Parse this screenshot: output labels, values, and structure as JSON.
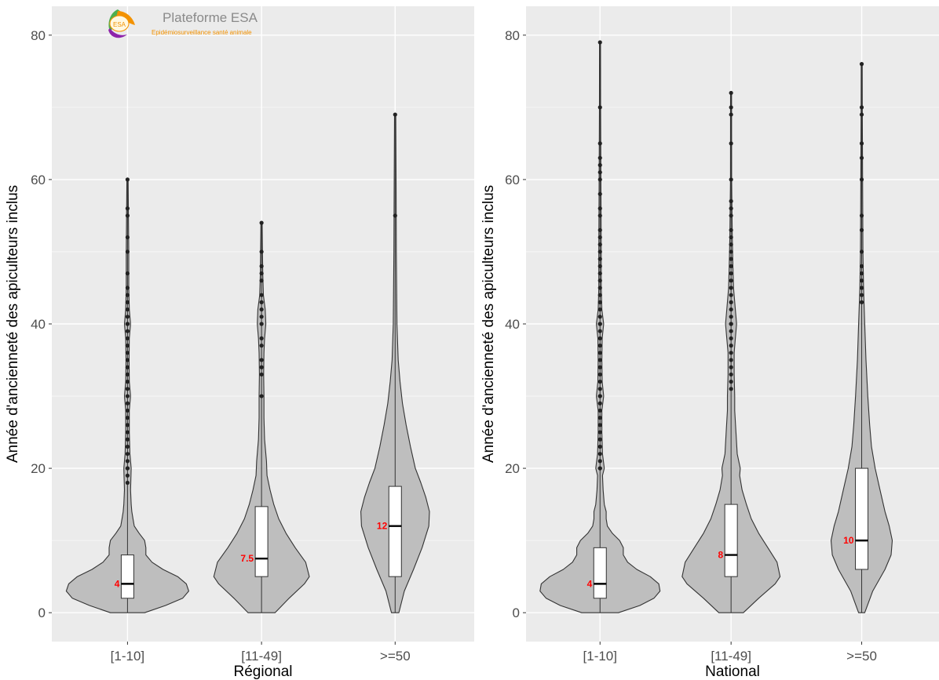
{
  "logo": {
    "mark_text": "ESA",
    "title": "Plateforme ESA",
    "subtitle": "Epidémiosurveillance santé animale",
    "colors": [
      "#4caf50",
      "#f39200",
      "#8e24aa"
    ]
  },
  "style": {
    "panel_background": "#ebebeb",
    "grid_color": "#ffffff",
    "violin_fill": "#bebebe",
    "violin_stroke": "#333333",
    "box_fill": "#ffffff",
    "point_color": "#222222",
    "median_label_color": "#ff0000"
  },
  "chart_data": [
    {
      "type": "violin",
      "xlabel": "Régional",
      "ylabel": "Année d'ancienneté des apiculteurs inclus",
      "categories": [
        "[1-10]",
        "[11-49]",
        ">=50"
      ],
      "ylim": [
        -4,
        84
      ],
      "yticks": [
        0,
        20,
        40,
        60,
        80
      ],
      "grid": true,
      "series": [
        {
          "category": "[1-10]",
          "box": {
            "q1": 2,
            "median": 4,
            "q3": 8,
            "whisker_low": 0,
            "whisker_high": 17
          },
          "median_label": "4",
          "density": [
            [
              0,
              0.28
            ],
            [
              1,
              0.62
            ],
            [
              2,
              0.9
            ],
            [
              3,
              1.0
            ],
            [
              4,
              0.96
            ],
            [
              5,
              0.82
            ],
            [
              6,
              0.58
            ],
            [
              7,
              0.4
            ],
            [
              8,
              0.3
            ],
            [
              9,
              0.3
            ],
            [
              10,
              0.28
            ],
            [
              11,
              0.19
            ],
            [
              12,
              0.11
            ],
            [
              13,
              0.09
            ],
            [
              14,
              0.07
            ],
            [
              15,
              0.06
            ],
            [
              17,
              0.05
            ],
            [
              20,
              0.06
            ],
            [
              22,
              0.04
            ],
            [
              25,
              0.03
            ],
            [
              28,
              0.03
            ],
            [
              30,
              0.05
            ],
            [
              32,
              0.03
            ],
            [
              35,
              0.025
            ],
            [
              38,
              0.03
            ],
            [
              40,
              0.05
            ],
            [
              42,
              0.03
            ],
            [
              45,
              0.02
            ],
            [
              50,
              0.02
            ],
            [
              55,
              0.015
            ],
            [
              60,
              0.01
            ]
          ],
          "outliers": [
            18,
            19,
            20,
            20,
            21,
            22,
            23,
            24,
            25,
            26,
            27,
            28,
            29,
            30,
            31,
            32,
            33,
            34,
            35,
            36,
            37,
            38,
            39,
            40,
            40,
            41,
            42,
            43,
            44,
            45,
            47,
            50,
            52,
            55,
            56,
            60
          ]
        },
        {
          "category": "[11-49]",
          "box": {
            "q1": 5,
            "median": 7.5,
            "q3": 14.7,
            "whisker_low": 0,
            "whisker_high": 28
          },
          "median_label": "7.5",
          "density": [
            [
              0,
              0.22
            ],
            [
              2,
              0.45
            ],
            [
              4,
              0.7
            ],
            [
              5,
              0.78
            ],
            [
              7,
              0.72
            ],
            [
              9,
              0.55
            ],
            [
              11,
              0.4
            ],
            [
              13,
              0.28
            ],
            [
              15,
              0.2
            ],
            [
              17,
              0.14
            ],
            [
              19,
              0.09
            ],
            [
              21,
              0.08
            ],
            [
              24,
              0.05
            ],
            [
              27,
              0.04
            ],
            [
              30,
              0.04
            ],
            [
              33,
              0.035
            ],
            [
              36,
              0.04
            ],
            [
              38,
              0.05
            ],
            [
              40,
              0.07
            ],
            [
              42,
              0.06
            ],
            [
              44,
              0.03
            ],
            [
              47,
              0.02
            ],
            [
              50,
              0.015
            ],
            [
              54,
              0.01
            ]
          ],
          "outliers": [
            30,
            33,
            34,
            35,
            37,
            38,
            40,
            41,
            42,
            43,
            44,
            46,
            47,
            48,
            50,
            54
          ]
        },
        {
          "category": ">=50",
          "box": {
            "q1": 5,
            "median": 12,
            "q3": 17.5,
            "whisker_low": 0,
            "whisker_high": 35
          },
          "median_label": "12",
          "density": [
            [
              0,
              0.06
            ],
            [
              3,
              0.15
            ],
            [
              6,
              0.3
            ],
            [
              9,
              0.44
            ],
            [
              12,
              0.55
            ],
            [
              14,
              0.56
            ],
            [
              16,
              0.5
            ],
            [
              18,
              0.42
            ],
            [
              20,
              0.33
            ],
            [
              23,
              0.25
            ],
            [
              26,
              0.18
            ],
            [
              29,
              0.12
            ],
            [
              32,
              0.08
            ],
            [
              35,
              0.05
            ],
            [
              40,
              0.03
            ],
            [
              50,
              0.02
            ],
            [
              60,
              0.015
            ],
            [
              69,
              0.01
            ]
          ],
          "outliers": [
            55,
            69
          ]
        }
      ]
    },
    {
      "type": "violin",
      "xlabel": "National",
      "ylabel": "Année d'ancienneté des apiculteurs inclus",
      "categories": [
        "[1-10]",
        "[11-49]",
        ">=50"
      ],
      "ylim": [
        -4,
        84
      ],
      "yticks": [
        0,
        20,
        40,
        60,
        80
      ],
      "grid": true,
      "series": [
        {
          "category": "[1-10]",
          "box": {
            "q1": 2,
            "median": 4,
            "q3": 9,
            "whisker_low": 0,
            "whisker_high": 19
          },
          "median_label": "4",
          "density": [
            [
              0,
              0.3
            ],
            [
              1,
              0.65
            ],
            [
              2,
              0.88
            ],
            [
              3,
              0.98
            ],
            [
              4,
              0.96
            ],
            [
              5,
              0.82
            ],
            [
              6,
              0.6
            ],
            [
              7,
              0.45
            ],
            [
              8,
              0.38
            ],
            [
              9,
              0.38
            ],
            [
              10,
              0.32
            ],
            [
              11,
              0.2
            ],
            [
              12,
              0.12
            ],
            [
              13,
              0.1
            ],
            [
              14,
              0.1
            ],
            [
              15,
              0.07
            ],
            [
              17,
              0.05
            ],
            [
              19,
              0.04
            ],
            [
              20,
              0.07
            ],
            [
              22,
              0.04
            ],
            [
              25,
              0.03
            ],
            [
              28,
              0.03
            ],
            [
              30,
              0.06
            ],
            [
              32,
              0.035
            ],
            [
              35,
              0.03
            ],
            [
              38,
              0.035
            ],
            [
              40,
              0.06
            ],
            [
              42,
              0.03
            ],
            [
              45,
              0.02
            ],
            [
              50,
              0.02
            ],
            [
              60,
              0.015
            ],
            [
              70,
              0.01
            ],
            [
              79,
              0.008
            ]
          ],
          "outliers": [
            20,
            20,
            21,
            22,
            23,
            24,
            25,
            26,
            27,
            28,
            29,
            30,
            30,
            31,
            32,
            33,
            34,
            35,
            36,
            37,
            38,
            39,
            40,
            40,
            41,
            42,
            43,
            44,
            45,
            46,
            47,
            48,
            49,
            50,
            51,
            52,
            53,
            55,
            56,
            58,
            60,
            61,
            62,
            63,
            65,
            70,
            79
          ]
        },
        {
          "category": "[11-49]",
          "box": {
            "q1": 5,
            "median": 8,
            "q3": 15,
            "whisker_low": 0,
            "whisker_high": 30
          },
          "median_label": "8",
          "density": [
            [
              0,
              0.2
            ],
            [
              2,
              0.45
            ],
            [
              4,
              0.72
            ],
            [
              5,
              0.8
            ],
            [
              7,
              0.75
            ],
            [
              9,
              0.6
            ],
            [
              11,
              0.45
            ],
            [
              13,
              0.33
            ],
            [
              15,
              0.25
            ],
            [
              17,
              0.18
            ],
            [
              19,
              0.14
            ],
            [
              20,
              0.15
            ],
            [
              22,
              0.1
            ],
            [
              25,
              0.08
            ],
            [
              28,
              0.06
            ],
            [
              30,
              0.06
            ],
            [
              33,
              0.05
            ],
            [
              36,
              0.05
            ],
            [
              38,
              0.07
            ],
            [
              40,
              0.09
            ],
            [
              42,
              0.07
            ],
            [
              45,
              0.04
            ],
            [
              48,
              0.03
            ],
            [
              52,
              0.02
            ],
            [
              56,
              0.015
            ],
            [
              60,
              0.01
            ],
            [
              72,
              0.008
            ]
          ],
          "outliers": [
            31,
            32,
            33,
            34,
            35,
            36,
            37,
            38,
            39,
            40,
            40,
            41,
            42,
            43,
            44,
            45,
            46,
            47,
            48,
            49,
            50,
            51,
            52,
            53,
            55,
            56,
            57,
            60,
            65,
            69,
            70,
            72
          ]
        },
        {
          "category": ">=50",
          "box": {
            "q1": 6,
            "median": 10,
            "q3": 20,
            "whisker_low": 0,
            "whisker_high": 41
          },
          "median_label": "10",
          "density": [
            [
              0,
              0.05
            ],
            [
              3,
              0.18
            ],
            [
              6,
              0.38
            ],
            [
              8,
              0.48
            ],
            [
              10,
              0.5
            ],
            [
              12,
              0.45
            ],
            [
              14,
              0.38
            ],
            [
              17,
              0.3
            ],
            [
              20,
              0.22
            ],
            [
              23,
              0.16
            ],
            [
              26,
              0.13
            ],
            [
              30,
              0.1
            ],
            [
              35,
              0.07
            ],
            [
              40,
              0.05
            ],
            [
              45,
              0.03
            ],
            [
              50,
              0.02
            ],
            [
              60,
              0.015
            ],
            [
              70,
              0.01
            ],
            [
              76,
              0.008
            ]
          ],
          "outliers": [
            43,
            44,
            45,
            46,
            47,
            48,
            50,
            53,
            55,
            60,
            63,
            65,
            69,
            70,
            76
          ]
        }
      ]
    }
  ]
}
